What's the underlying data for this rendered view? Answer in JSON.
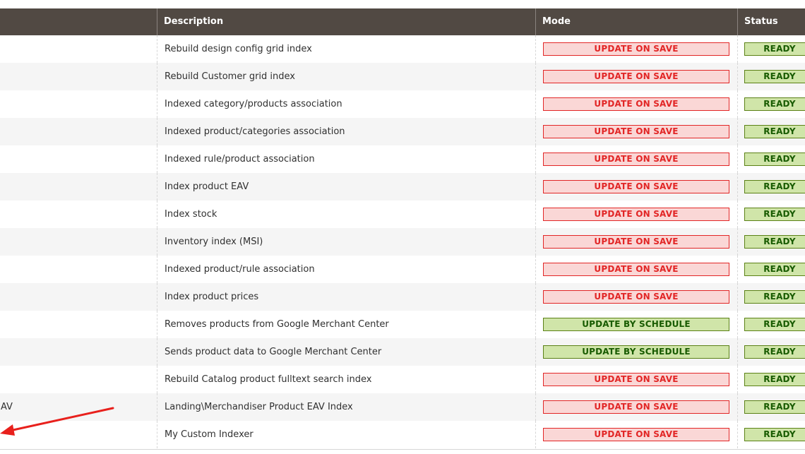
{
  "columns": {
    "description": "Description",
    "mode": "Mode",
    "status": "Status"
  },
  "rows": [
    {
      "title": "",
      "description": "Rebuild design config grid index",
      "mode": "UPDATE ON SAVE",
      "mode_type": "save",
      "status": "READY"
    },
    {
      "title": "",
      "description": "Rebuild Customer grid index",
      "mode": "UPDATE ON SAVE",
      "mode_type": "save",
      "status": "READY"
    },
    {
      "title": "",
      "description": "Indexed category/products association",
      "mode": "UPDATE ON SAVE",
      "mode_type": "save",
      "status": "READY"
    },
    {
      "title": "",
      "description": "Indexed product/categories association",
      "mode": "UPDATE ON SAVE",
      "mode_type": "save",
      "status": "READY"
    },
    {
      "title": "",
      "description": "Indexed rule/product association",
      "mode": "UPDATE ON SAVE",
      "mode_type": "save",
      "status": "READY"
    },
    {
      "title": "",
      "description": "Index product EAV",
      "mode": "UPDATE ON SAVE",
      "mode_type": "save",
      "status": "READY"
    },
    {
      "title": "",
      "description": "Index stock",
      "mode": "UPDATE ON SAVE",
      "mode_type": "save",
      "status": "READY"
    },
    {
      "title": "",
      "description": "Inventory index (MSI)",
      "mode": "UPDATE ON SAVE",
      "mode_type": "save",
      "status": "READY"
    },
    {
      "title": "",
      "description": "Indexed product/rule association",
      "mode": "UPDATE ON SAVE",
      "mode_type": "save",
      "status": "READY"
    },
    {
      "title": "",
      "description": "Index product prices",
      "mode": "UPDATE ON SAVE",
      "mode_type": "save",
      "status": "READY"
    },
    {
      "title": "",
      "description": "Removes products from Google Merchant Center",
      "mode": "UPDATE BY SCHEDULE",
      "mode_type": "schedule",
      "status": "READY"
    },
    {
      "title": "",
      "description": "Sends product data to Google Merchant Center",
      "mode": "UPDATE BY SCHEDULE",
      "mode_type": "schedule",
      "status": "READY"
    },
    {
      "title": "",
      "description": "Rebuild Catalog product fulltext search index",
      "mode": "UPDATE ON SAVE",
      "mode_type": "save",
      "status": "READY"
    },
    {
      "title": "AV",
      "description": "Landing\\Merchandiser Product EAV Index",
      "mode": "UPDATE ON SAVE",
      "mode_type": "save",
      "status": "READY"
    },
    {
      "title": "",
      "description": "My Custom Indexer",
      "mode": "UPDATE ON SAVE",
      "mode_type": "save",
      "status": "READY"
    }
  ],
  "colors": {
    "header_bg": "#514943",
    "save_text": "#e22626",
    "save_bg": "#fad7d6",
    "schedule_text": "#185b00",
    "schedule_bg": "#d0e5a9",
    "annotation_arrow": "#e8201c"
  },
  "annotation": {
    "icon": "red-arrow-icon"
  }
}
